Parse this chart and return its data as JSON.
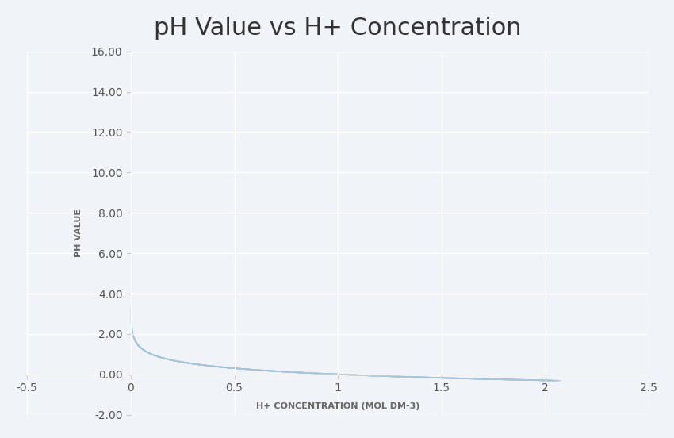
{
  "title": "pH Value vs H+ Concentration",
  "xlabel": "H+ CONCENTRATION (MOL DM-3)",
  "ylabel": "PH VALUE",
  "xlim": [
    -0.5,
    2.5
  ],
  "ylim": [
    -2.0,
    16.0
  ],
  "xticks": [
    -0.5,
    0,
    0.5,
    1,
    1.5,
    2,
    2.5
  ],
  "yticks": [
    -2.0,
    0.0,
    2.0,
    4.0,
    6.0,
    8.0,
    10.0,
    12.0,
    14.0,
    16.0
  ],
  "background_color": "#f0f4f8",
  "plot_bg_color": "#f0f4f8",
  "grid_color": "#ffffff",
  "line_color": "#a8c4d8",
  "line_alpha": 0.6,
  "title_fontsize": 22,
  "axis_label_fontsize": 8,
  "tick_fontsize": 10,
  "line_width": 1.2,
  "num_lines": 8,
  "x_start": 0.004,
  "x_end": 2.05,
  "num_points": 600,
  "spread": 0.008
}
